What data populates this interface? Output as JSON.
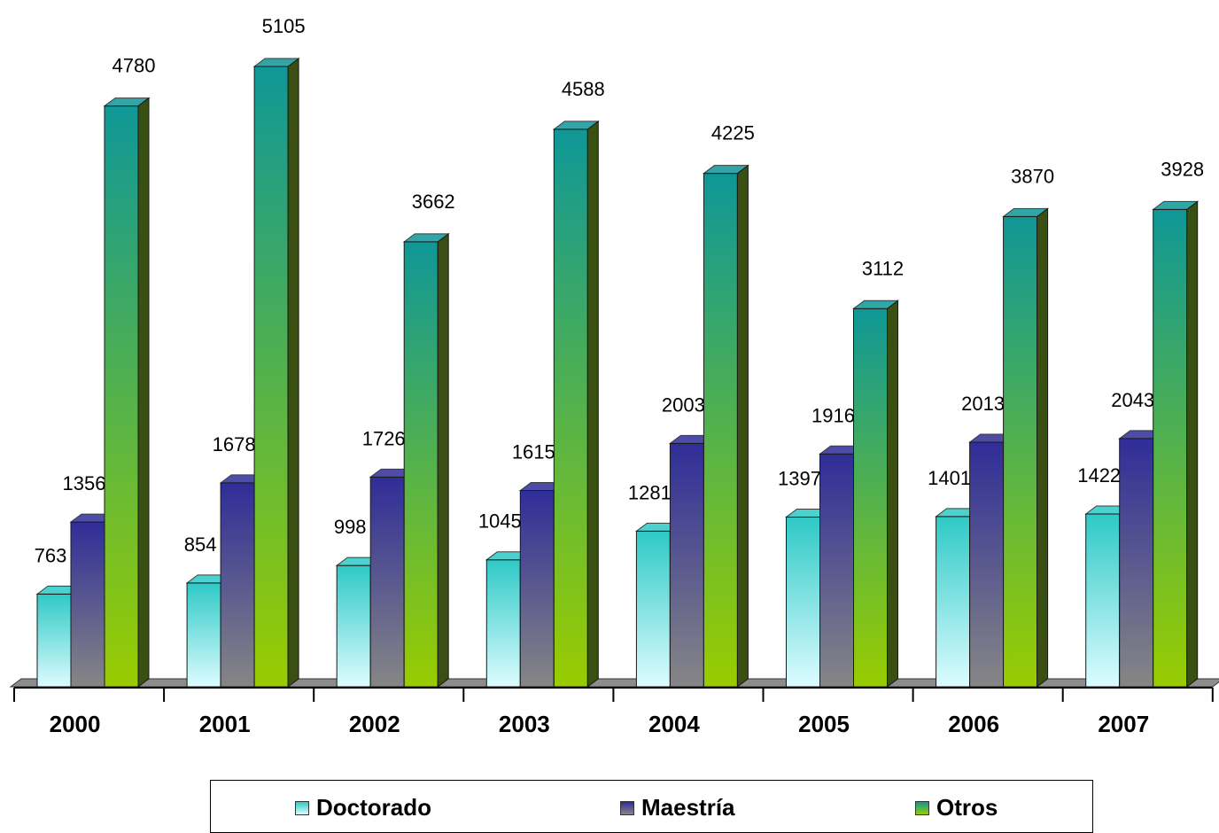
{
  "chart_data": {
    "type": "bar",
    "categories": [
      "2000",
      "2001",
      "2002",
      "2003",
      "2004",
      "2005",
      "2006",
      "2007"
    ],
    "series": [
      {
        "name": "Doctorado",
        "values": [
          763,
          854,
          998,
          1045,
          1281,
          1397,
          1401,
          1422
        ],
        "colors": {
          "top": "#2ec9c6",
          "bottom": "#ddfcff",
          "side": "#138f8c"
        }
      },
      {
        "name": "Maestría",
        "values": [
          1356,
          1678,
          1726,
          1615,
          2003,
          1916,
          2013,
          2043
        ],
        "colors": {
          "top": "#2f2d98",
          "bottom": "#868686",
          "side": "#18175e"
        }
      },
      {
        "name": "Otros",
        "values": [
          4780,
          5105,
          3662,
          4588,
          4225,
          3112,
          3870,
          3928
        ],
        "colors": {
          "top": "#0f9797",
          "bottom": "#99cc00",
          "side": "#3a4f12"
        }
      }
    ],
    "ylim": [
      0,
      5600
    ],
    "grid": false,
    "legend": "bottom",
    "three_d": true
  }
}
